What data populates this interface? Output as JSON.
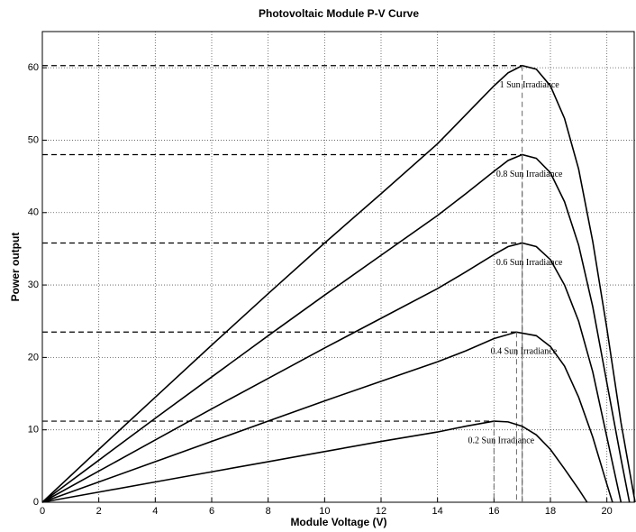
{
  "chart_data": {
    "type": "line",
    "title": "Photovoltaic Module P-V Curve",
    "x_label": "Module Voltage (V)",
    "y_label": "Power output",
    "xlim": [
      0,
      21
    ],
    "ylim": [
      0,
      65
    ],
    "xticks": [
      0,
      2,
      4,
      6,
      8,
      10,
      12,
      14,
      16,
      18,
      20
    ],
    "yticks": [
      0,
      10,
      20,
      30,
      40,
      50,
      60
    ],
    "grid": true,
    "max_power_lines": true,
    "series": [
      {
        "name": "1 Sun Irradiance",
        "color": "#000000",
        "x": [
          0,
          2,
          4,
          6,
          8,
          10,
          12,
          14,
          15,
          16,
          16.5,
          17,
          17.5,
          18,
          18.5,
          19,
          19.5,
          20,
          20.5,
          21
        ],
        "values": [
          0,
          7.3,
          14.5,
          21.7,
          28.8,
          35.8,
          42.6,
          49.5,
          53.5,
          57.5,
          59.3,
          60.3,
          59.8,
          57.5,
          53,
          46,
          36,
          24,
          11,
          0
        ]
      },
      {
        "name": "0.8 Sun Irradiance",
        "color": "#000000",
        "x": [
          0,
          2,
          4,
          6,
          8,
          10,
          12,
          14,
          15,
          16,
          16.5,
          17,
          17.5,
          18,
          18.5,
          19,
          19.5,
          20,
          20.5,
          20.8
        ],
        "values": [
          0,
          5.8,
          11.6,
          17.3,
          23,
          28.6,
          34.1,
          39.6,
          42.6,
          45.7,
          47.2,
          48,
          47.5,
          45.5,
          41.5,
          35.5,
          27,
          16.5,
          6,
          0
        ]
      },
      {
        "name": "0.6 Sun Irradiance",
        "color": "#000000",
        "x": [
          0,
          2,
          4,
          6,
          8,
          10,
          12,
          14,
          15,
          16,
          16.5,
          17,
          17.5,
          18,
          18.5,
          19,
          19.5,
          20,
          20.5
        ],
        "values": [
          0,
          4.3,
          8.6,
          12.9,
          17.1,
          21.3,
          25.4,
          29.5,
          31.8,
          34.2,
          35.3,
          35.8,
          35.3,
          33.5,
          30,
          25,
          18,
          9,
          0
        ]
      },
      {
        "name": "0.4 Sun Irradiance",
        "color": "#000000",
        "x": [
          0,
          2,
          4,
          6,
          8,
          10,
          12,
          14,
          15,
          16,
          16.8,
          17.5,
          18,
          18.5,
          19,
          19.5,
          20,
          20.2
        ],
        "values": [
          0,
          2.8,
          5.6,
          8.4,
          11.2,
          14,
          16.7,
          19.4,
          20.9,
          22.6,
          23.5,
          23,
          21.5,
          18.8,
          14.5,
          9,
          2.5,
          0
        ]
      },
      {
        "name": "0.2 Sun Irradiance",
        "color": "#000000",
        "x": [
          0,
          2,
          4,
          6,
          8,
          10,
          12,
          14,
          15,
          16,
          16.5,
          17,
          17.5,
          18,
          18.5,
          19,
          19.3
        ],
        "values": [
          0,
          1.4,
          2.8,
          4.2,
          5.6,
          7,
          8.4,
          9.7,
          10.5,
          11.2,
          11.1,
          10.5,
          9.3,
          7.3,
          4.6,
          1.8,
          0
        ]
      }
    ]
  }
}
